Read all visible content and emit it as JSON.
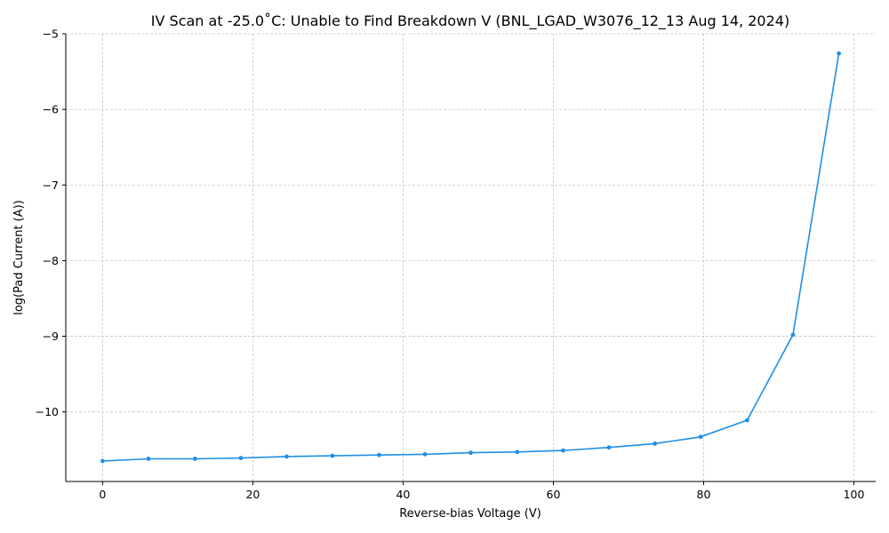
{
  "chart_data": {
    "type": "line",
    "title": "IV Scan at -25.0˚C: Unable to Find Breakdown V (BNL_LGAD_W3076_12_13 Aug 14, 2024)",
    "xlabel": "Reverse-bias Voltage (V)",
    "ylabel": "log(Pad Current (A))",
    "xlim": [
      -4.9,
      102.9
    ],
    "ylim": [
      -10.92,
      -5.0
    ],
    "xticks": [
      0,
      20,
      40,
      60,
      80,
      100
    ],
    "xtick_labels": [
      "0",
      "20",
      "40",
      "60",
      "80",
      "100"
    ],
    "yticks": [
      -10,
      -9,
      -8,
      -7,
      -6,
      -5
    ],
    "ytick_labels": [
      "−10",
      "−9",
      "−8",
      "−7",
      "−6",
      "−5"
    ],
    "grid": true,
    "line_color": "#1f8fe6",
    "series": [
      {
        "x": [
          0,
          6.1,
          12.3,
          18.4,
          24.5,
          30.6,
          36.8,
          42.9,
          49.0,
          55.2,
          61.3,
          67.4,
          73.5,
          79.6,
          85.8,
          91.9,
          98.0
        ],
        "y": [
          -10.65,
          -10.62,
          -10.62,
          -10.61,
          -10.59,
          -10.58,
          -10.57,
          -10.56,
          -10.54,
          -10.53,
          -10.51,
          -10.47,
          -10.42,
          -10.33,
          -10.11,
          -8.98,
          -5.26
        ]
      }
    ]
  }
}
